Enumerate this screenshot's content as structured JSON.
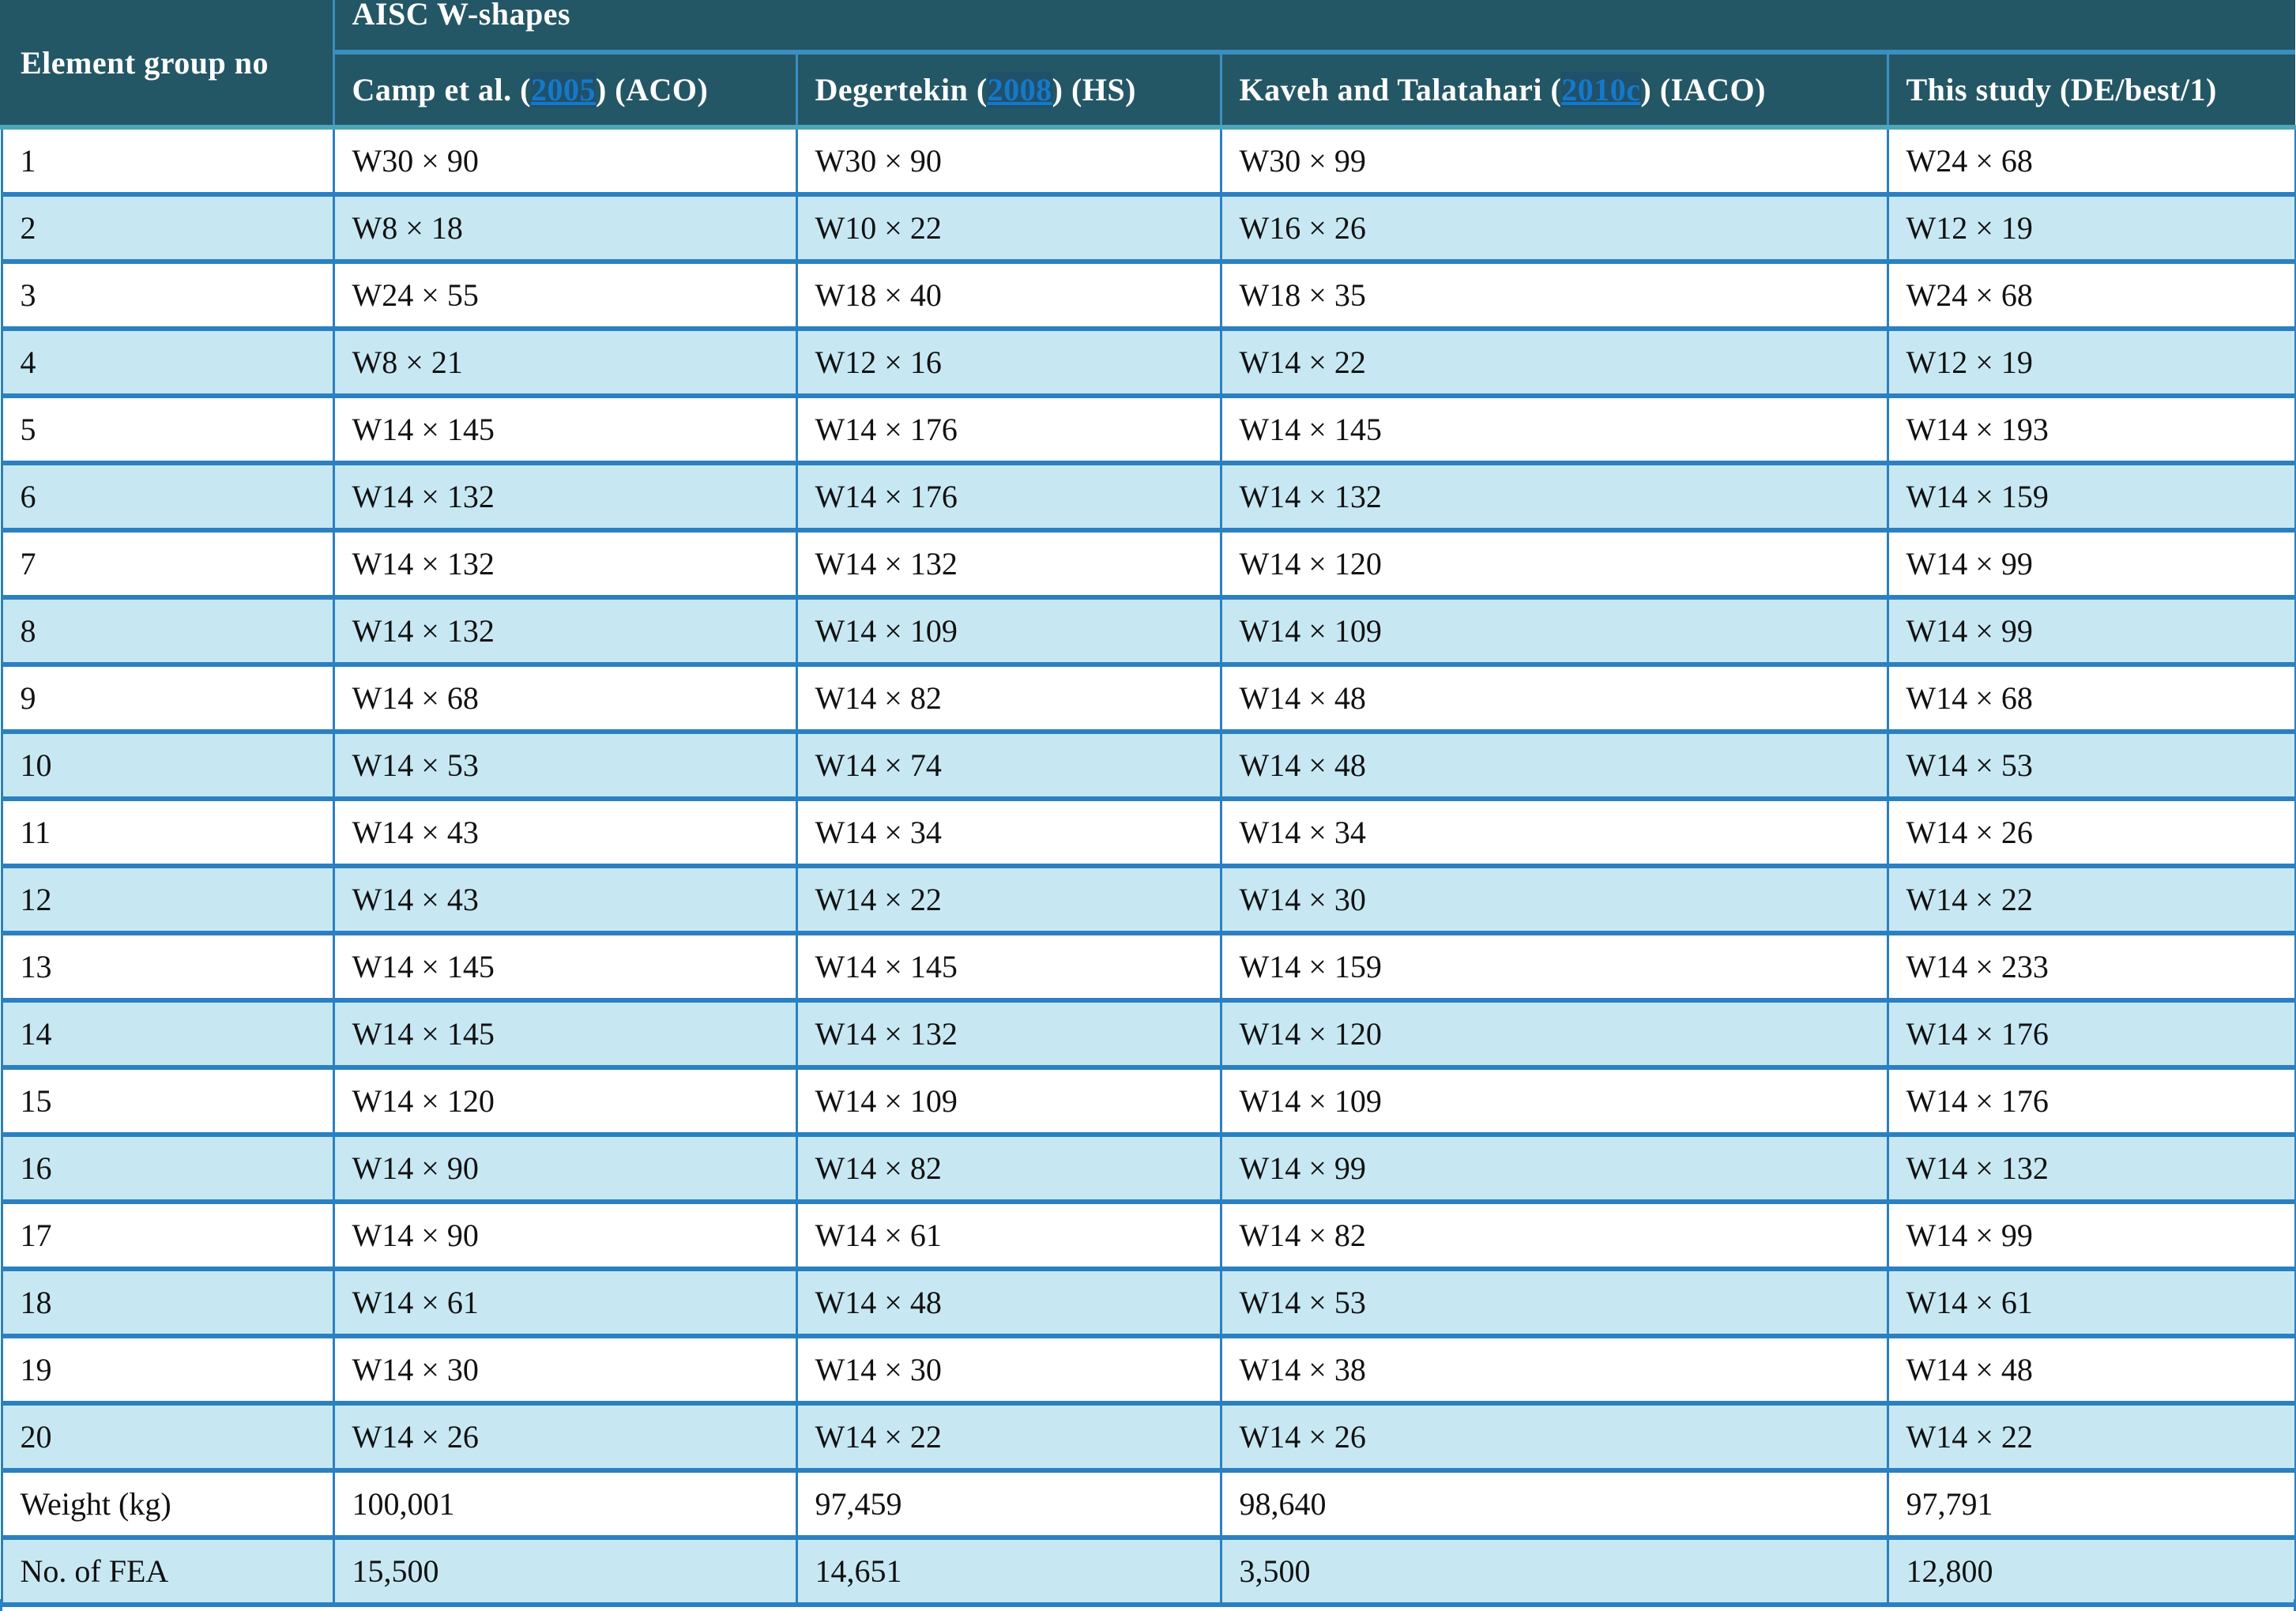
{
  "table": {
    "row_header": "Element group no",
    "group_header": "AISC W-shapes",
    "columns": [
      {
        "prefix": "Camp et al. (",
        "ref": "2005",
        "suffix": ") (ACO)"
      },
      {
        "prefix": "Degertekin (",
        "ref": "2008",
        "suffix": ") (HS)"
      },
      {
        "prefix": "Kaveh and Talatahari (",
        "ref": "2010c",
        "suffix": ") (IACO)"
      },
      {
        "prefix": "This study (DE/best/1)",
        "ref": "",
        "suffix": ""
      }
    ],
    "rows": [
      [
        "1",
        "W30 × 90",
        "W30 × 90",
        "W30 × 99",
        "W24 × 68"
      ],
      [
        "2",
        "W8 × 18",
        "W10 × 22",
        "W16 × 26",
        "W12 × 19"
      ],
      [
        "3",
        "W24 × 55",
        "W18 × 40",
        "W18 × 35",
        "W24 × 68"
      ],
      [
        "4",
        "W8 × 21",
        "W12 × 16",
        "W14 × 22",
        "W12 × 19"
      ],
      [
        "5",
        "W14 × 145",
        "W14 × 176",
        "W14 × 145",
        "W14 × 193"
      ],
      [
        "6",
        "W14 × 132",
        "W14 × 176",
        "W14 × 132",
        "W14 × 159"
      ],
      [
        "7",
        "W14 × 132",
        "W14 × 132",
        "W14 × 120",
        "W14 × 99"
      ],
      [
        "8",
        "W14 × 132",
        "W14 × 109",
        "W14 × 109",
        "W14 × 99"
      ],
      [
        "9",
        "W14 × 68",
        "W14 × 82",
        "W14 × 48",
        "W14 × 68"
      ],
      [
        "10",
        "W14 × 53",
        "W14 × 74",
        "W14 × 48",
        "W14 × 53"
      ],
      [
        "11",
        "W14 × 43",
        "W14 × 34",
        "W14 × 34",
        "W14 × 26"
      ],
      [
        "12",
        "W14 × 43",
        "W14 × 22",
        "W14 × 30",
        "W14 × 22"
      ],
      [
        "13",
        "W14 × 145",
        "W14 × 145",
        "W14 × 159",
        "W14 × 233"
      ],
      [
        "14",
        "W14 × 145",
        "W14 × 132",
        "W14 × 120",
        "W14 × 176"
      ],
      [
        "15",
        "W14 × 120",
        "W14 × 109",
        "W14 × 109",
        "W14 × 176"
      ],
      [
        "16",
        "W14 × 90",
        "W14 × 82",
        "W14 × 99",
        "W14 × 132"
      ],
      [
        "17",
        "W14 × 90",
        "W14 × 61",
        "W14 × 82",
        "W14 × 99"
      ],
      [
        "18",
        "W14 × 61",
        "W14 × 48",
        "W14 × 53",
        "W14 × 61"
      ],
      [
        "19",
        "W14 × 30",
        "W14 × 30",
        "W14 × 38",
        "W14 × 48"
      ],
      [
        "20",
        "W14 × 26",
        "W14 × 22",
        "W14 × 26",
        "W14 × 22"
      ],
      [
        "Weight (kg)",
        "100,001",
        "97,459",
        "98,640",
        "97,791"
      ],
      [
        "No. of FEA",
        "15,500",
        "14,651",
        "3,500",
        "12,800"
      ]
    ]
  },
  "colors": {
    "header_bg": "#245766",
    "border": "#2b80c2",
    "alt_row": "#c7e8f3",
    "link": "#1479c9"
  }
}
